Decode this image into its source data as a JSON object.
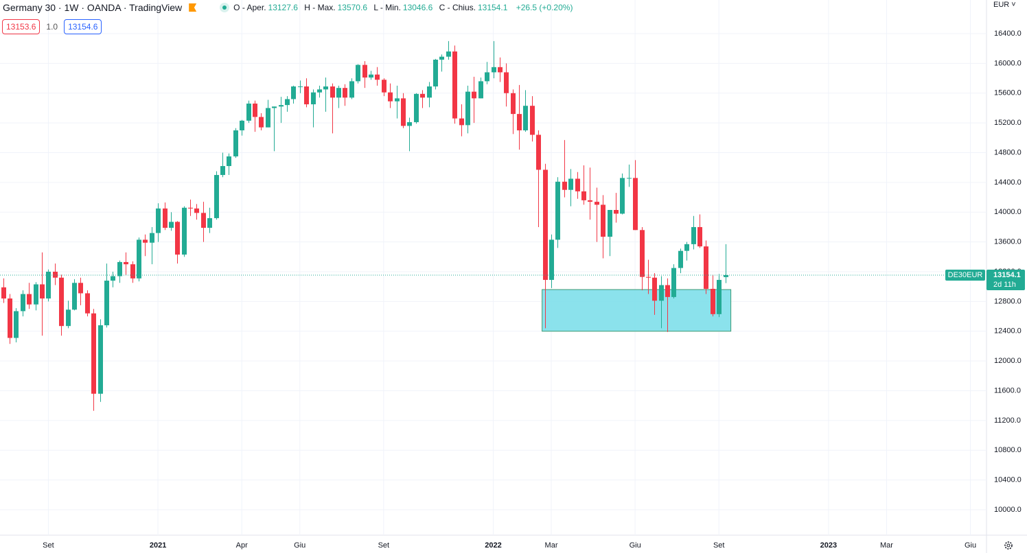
{
  "header": {
    "title": "Germany 30 · 1W · OANDA · TradingView",
    "labels": {
      "open": "O - Aper.",
      "high": "H - Max.",
      "low": "L - Min.",
      "close": "C - Chius."
    },
    "change": "+26.5 (+0.20%)",
    "bid": 13153.6,
    "spread": "1.0",
    "ask": 13154.6,
    "currency": "EUR",
    "symbol": "DE30EUR",
    "countdown": "2d 11h"
  },
  "chart_data": {
    "type": "candlestick",
    "categories": [
      null,
      null,
      null,
      null,
      null,
      null,
      null,
      "Set",
      null,
      null,
      null,
      null,
      null,
      null,
      null,
      null,
      null,
      null,
      null,
      null,
      null,
      null,
      null,
      null,
      "2021",
      null,
      null,
      null,
      null,
      null,
      null,
      null,
      null,
      null,
      null,
      null,
      null,
      "Apr",
      null,
      null,
      null,
      null,
      null,
      null,
      null,
      null,
      "Giu",
      null,
      null,
      null,
      null,
      null,
      null,
      null,
      null,
      null,
      null,
      null,
      null,
      "Set",
      null,
      null,
      null,
      null,
      null,
      null,
      null,
      null,
      null,
      null,
      null,
      null,
      null,
      null,
      null,
      null,
      "2022",
      null,
      null,
      null,
      null,
      null,
      null,
      null,
      null,
      "Mar",
      null,
      null,
      null,
      null,
      null,
      null,
      null,
      null,
      null,
      null,
      null,
      null,
      "Giu",
      null,
      null,
      null,
      null,
      null,
      null,
      null,
      null,
      null,
      null,
      null,
      null,
      "Set",
      null,
      null,
      null,
      null,
      null,
      null,
      null,
      null,
      null,
      null,
      null,
      null,
      null,
      null,
      null,
      null,
      "2023",
      null,
      null,
      null,
      null,
      null,
      null,
      null,
      null,
      "Mar",
      null,
      null,
      null,
      null,
      null,
      null,
      null,
      null,
      null,
      null,
      null,
      null,
      "Giu",
      null,
      null
    ],
    "open": [
      12990,
      12840,
      12310,
      12670,
      12900,
      12760,
      13030,
      12840,
      13200,
      13120,
      12470,
      12690,
      13050,
      12910,
      12640,
      11560,
      12480,
      13080,
      13140,
      13330,
      13300,
      13110,
      13630,
      13590,
      13720,
      14050,
      13790,
      13870,
      13430,
      14060,
      14050,
      13990,
      13790,
      13920,
      14500,
      14620,
      14750,
      15100,
      15230,
      15460,
      15280,
      15140,
      15400,
      15420,
      15440,
      15520,
      15690,
      15690,
      15450,
      15610,
      15650,
      15690,
      15540,
      15670,
      15540,
      15760,
      15980,
      15810,
      15850,
      15780,
      15610,
      15490,
      15530,
      15160,
      15210,
      15590,
      15540,
      15690,
      16050,
      16090,
      16160,
      15260,
      15170,
      15620,
      15530,
      15760,
      15880,
      15950,
      15880,
      15600,
      15320,
      15100,
      15430,
      15040,
      14570,
      13090,
      13630,
      14410,
      14300,
      14450,
      14280,
      14160,
      14140,
      14100,
      13670,
      14030,
      13980,
      14460,
      14460,
      13760,
      13130,
      13120,
      12810,
      13020,
      12860,
      13250,
      13480,
      13570,
      13800,
      13540,
      12970,
      12630,
      13127.6,
      null,
      null,
      null,
      null,
      null,
      null,
      null,
      null,
      null,
      null,
      null,
      null,
      null,
      null,
      null,
      null,
      null,
      null,
      null,
      null,
      null,
      null,
      null,
      null,
      null,
      null,
      null,
      null,
      null,
      null,
      null,
      null,
      null,
      null,
      null,
      null,
      null,
      null,
      null,
      null
    ],
    "high": [
      13110,
      12900,
      12710,
      12950,
      13050,
      13060,
      13460,
      13230,
      13310,
      13160,
      12810,
      13100,
      13120,
      12950,
      12700,
      12560,
      13310,
      13200,
      13350,
      13460,
      13340,
      13660,
      13700,
      13800,
      14120,
      14130,
      14000,
      13880,
      14080,
      14170,
      14110,
      14140,
      14060,
      14550,
      14800,
      14790,
      15130,
      15240,
      15500,
      15500,
      15330,
      15510,
      15420,
      15550,
      15560,
      15700,
      15770,
      15800,
      15650,
      15700,
      15810,
      15730,
      15700,
      15720,
      15800,
      15990,
      16030,
      15900,
      15950,
      15800,
      15730,
      15700,
      15600,
      15270,
      15600,
      15640,
      15750,
      16060,
      16120,
      16300,
      16240,
      15450,
      15700,
      15820,
      15810,
      16020,
      16300,
      16080,
      16000,
      15650,
      15710,
      15640,
      15560,
      15100,
      14650,
      13700,
      14470,
      14970,
      14580,
      14540,
      14630,
      14600,
      14330,
      14230,
      14030,
      14260,
      14520,
      14640,
      14700,
      13800,
      13360,
      13180,
      13140,
      13110,
      13300,
      13510,
      13600,
      13950,
      13970,
      13620,
      13160,
      13170,
      13570.6,
      null,
      null,
      null,
      null,
      null,
      null,
      null,
      null,
      null,
      null,
      null,
      null,
      null,
      null,
      null,
      null,
      null,
      null,
      null,
      null,
      null,
      null,
      null,
      null,
      null,
      null,
      null,
      null,
      null,
      null,
      null,
      null,
      null,
      null,
      null,
      null,
      null,
      null,
      null,
      null
    ],
    "low": [
      12780,
      12230,
      12250,
      12600,
      12700,
      12680,
      12340,
      12800,
      13020,
      12340,
      12440,
      12680,
      12750,
      12600,
      11330,
      11450,
      12450,
      12990,
      13050,
      13150,
      13050,
      13070,
      13410,
      13300,
      13600,
      13760,
      13750,
      13310,
      13400,
      13950,
      13900,
      13600,
      13720,
      13900,
      14470,
      14500,
      14730,
      15030,
      15200,
      15080,
      15100,
      15140,
      14820,
      15200,
      15350,
      15460,
      15600,
      15410,
      15140,
      15540,
      15350,
      15060,
      15400,
      15430,
      15520,
      15730,
      15670,
      15780,
      15700,
      15560,
      15400,
      15260,
      15130,
      14820,
      15190,
      15400,
      15410,
      15650,
      15890,
      16050,
      15190,
      15020,
      15060,
      15200,
      15530,
      15720,
      15800,
      15750,
      15420,
      15050,
      14840,
      15080,
      14950,
      13800,
      12440,
      12980,
      13520,
      14200,
      14080,
      14180,
      14100,
      13900,
      13600,
      13380,
      13410,
      13860,
      13970,
      14340,
      13760,
      12950,
      12900,
      12620,
      12440,
      12390,
      12840,
      13180,
      13350,
      13500,
      13520,
      12900,
      12600,
      12590,
      13046.6,
      null,
      null,
      null,
      null,
      null,
      null,
      null,
      null,
      null,
      null,
      null,
      null,
      null,
      null,
      null,
      null,
      null,
      null,
      null,
      null,
      null,
      null,
      null,
      null,
      null,
      null,
      null,
      null,
      null,
      null,
      null,
      null,
      null,
      null,
      null,
      null,
      null,
      null,
      null,
      null
    ],
    "close": [
      12840,
      12310,
      12670,
      12900,
      12760,
      13030,
      12840,
      13200,
      13120,
      12470,
      12690,
      13050,
      12910,
      12640,
      11560,
      12480,
      13080,
      13140,
      13330,
      13300,
      13110,
      13630,
      13590,
      13720,
      14050,
      13790,
      13870,
      13430,
      14060,
      14050,
      13990,
      13790,
      13920,
      14500,
      14620,
      14750,
      15100,
      15230,
      15460,
      15280,
      15140,
      15400,
      15420,
      15440,
      15520,
      15690,
      15690,
      15450,
      15610,
      15650,
      15690,
      15540,
      15670,
      15540,
      15760,
      15980,
      15810,
      15850,
      15780,
      15610,
      15490,
      15530,
      15160,
      15210,
      15590,
      15540,
      15690,
      16050,
      16090,
      16160,
      15260,
      15170,
      15620,
      15530,
      15760,
      15880,
      15950,
      15880,
      15600,
      15320,
      15100,
      15430,
      15040,
      14570,
      13090,
      13630,
      14410,
      14300,
      14450,
      14280,
      14160,
      14140,
      14100,
      13670,
      14030,
      13980,
      14460,
      14460,
      13760,
      13130,
      13120,
      12810,
      13020,
      12860,
      13250,
      13480,
      13570,
      13800,
      13540,
      12970,
      12630,
      13090,
      13154.1,
      null,
      null,
      null,
      null,
      null,
      null,
      null,
      null,
      null,
      null,
      null,
      null,
      null,
      null,
      null,
      null,
      null,
      null,
      null,
      null,
      null,
      null,
      null,
      null,
      null,
      null,
      null,
      null,
      null,
      null,
      null,
      null,
      null,
      null,
      null,
      null,
      null,
      null,
      null,
      null
    ],
    "up_color": "#22ab94",
    "down_color": "#f23645",
    "ylim": [
      9659,
      16852
    ],
    "yticks": [
      {
        "value": 10000,
        "label": "10000.0"
      },
      {
        "value": 10400,
        "label": "10400.0"
      },
      {
        "value": 10800,
        "label": "10800.0"
      },
      {
        "value": 11200,
        "label": "11200.0"
      },
      {
        "value": 11600,
        "label": "11600.0"
      },
      {
        "value": 12000,
        "label": "12000.0"
      },
      {
        "value": 12400,
        "label": "12400.0"
      },
      {
        "value": 12800,
        "label": "12800.0"
      },
      {
        "value": 13200,
        "label": "13200.0"
      },
      {
        "value": 13600,
        "label": "13600.0"
      },
      {
        "value": 14000,
        "label": "14000.0"
      },
      {
        "value": 14400,
        "label": "14400.0"
      },
      {
        "value": 14800,
        "label": "14800.0"
      },
      {
        "value": 15200,
        "label": "15200.0"
      },
      {
        "value": 15600,
        "label": "15600.0"
      },
      {
        "value": 16000,
        "label": "16000.0"
      },
      {
        "value": 16400,
        "label": "16400.0"
      }
    ],
    "grid": true,
    "zone": {
      "low": 12400,
      "high": 12960,
      "color": "#7edfea"
    }
  }
}
